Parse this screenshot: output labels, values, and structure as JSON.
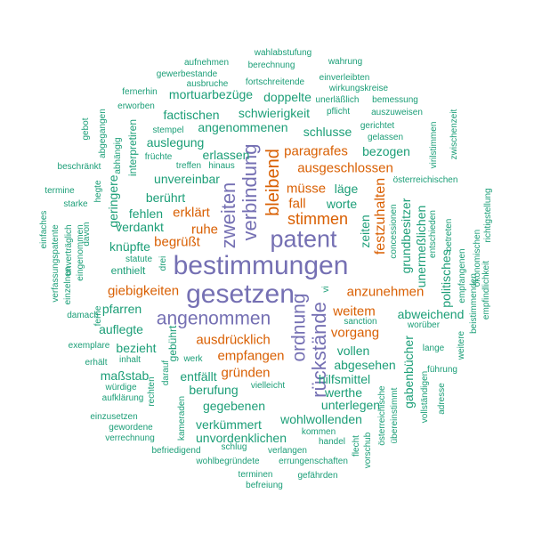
{
  "palette": {
    "purple": "#7570b3",
    "orange": "#d95f02",
    "green": "#1b9e77"
  },
  "words": {
    "bestimmungen": "bestimmungen",
    "gesetzen": "gesetzen",
    "patent": "patent",
    "angenommen": "angenommen",
    "zweiten": "zweiten",
    "verbindung": "verbindung",
    "ruckstande": "rückstände",
    "ordnung": "ordnung",
    "bleibend": "bleibend",
    "stimmen": "stimmen",
    "paragrafes": "paragrafes",
    "ausgeschlossen": "ausgeschlossen",
    "festzuhalten": "festzuhalten",
    "giebigkeiten": "giebigkeiten",
    "anzunehmen": "anzunehmen",
    "ausdrucklich": "ausdrücklich",
    "empfangen": "empfangen",
    "grunden": "gründen",
    "erklart": "erklärt",
    "ruhe": "ruhe",
    "begrusst": "begrüßt",
    "musse": "müsse",
    "fall": "fall",
    "vorgang": "vorgang",
    "weitem": "weitem",
    "wahlabstufung": "wahlabstufung",
    "aufnehmen": "aufnehmen",
    "berechnung": "berechnung",
    "wahrung": "wahrung",
    "gewerbestande": "gewerbestande",
    "einverleibten": "einverleibten",
    "ausbruche": "ausbruche",
    "fortschreitende": "fortschreitende",
    "wirkungskreise": "wirkungskreise",
    "fernerhin": "fernerhin",
    "mortuarbezuge": "mortuarbezüge",
    "doppelte": "doppelte",
    "unerlasslich": "unerläßlich",
    "bemessung": "bemessung",
    "erworben": "erworben",
    "pflicht": "pflicht",
    "auszuweisen": "auszuweisen",
    "gebot": "gebot",
    "abgegangen": "abgegangen",
    "factischen": "factischen",
    "schwierigkeit": "schwierigkeit",
    "zwischenzeit": "zwischenzeit",
    "stempel": "stempel",
    "angenommenen": "angenommenen",
    "schlusse": "schlusse",
    "gerichtet": "gerichtet",
    "interpretiren": "interpretiren",
    "auslegung": "auslegung",
    "gelassen": "gelassen",
    "virilstimmen": "virilstimmen",
    "abhangig": "abhängig",
    "fruchte": "früchte",
    "erlassen": "erlassen",
    "bezogen": "bezogen",
    "beschrankt": "beschränkt",
    "treffen": "treffen",
    "hinaus": "hinaus",
    "osterreichischen": "österreichischen",
    "hegte": "hegte",
    "geringere": "geringere",
    "unvereinbar": "unvereinbar",
    "lage": "läge",
    "termine": "termine",
    "einfaches": "einfaches",
    "starke": "starke",
    "beruhrt": "berührt",
    "worte": "worte",
    "richtigstellung": "richtigstellung",
    "verdankt": "verdankt",
    "fehlen": "fehlen",
    "zeiten": "zeiten",
    "concessionen": "concessionen",
    "vermoegens": "vermögens",
    "grundbesitzer": "grundbesitzer",
    "unermesslichen": "unermeßlichen",
    "entschieden": "entschieden",
    "betreten": "betreten",
    "davon": "davon",
    "unvertraglich": "unverträglich",
    "verfassungspatente": "verfassungspatente",
    "einzelnen": "einzelnen",
    "eingenommen": "eingenommen",
    "knupfte": "knüpfte",
    "enthielt": "enthielt",
    "statute": "statute",
    "drei": "drei",
    "okonomischen": "ökonomischen",
    "politisches": "politisches",
    "empfangenen": "empfangenen",
    "vi": "vi",
    "pfarren": "pfarren",
    "sanction": "sanction",
    "abweichend": "abweichend",
    "damach": "damach",
    "beistimmenden": "beistimmenden",
    "empfindlichkeit": "empfindlichkeit",
    "auflegte": "auflegte",
    "woruber": "worüber",
    "ferne": "ferne",
    "exemplare": "exemplare",
    "bezieht": "bezieht",
    "gebuhrt": "gebührt",
    "inhalt": "inhalt",
    "erhalt": "erhält",
    "werk": "werk",
    "vollen": "vollen",
    "lange": "lange",
    "weitere": "weitere",
    "abgesehen": "abgesehen",
    "massstab": "maßstab",
    "entfallt": "entfällt",
    "fuhrung": "führung",
    "wurdige": "würdige",
    "darauf": "darauf",
    "berufung": "berufung",
    "hilfsmittel": "hilfsmittel",
    "gabenbucher": "gabenbücher",
    "aufklarung": "aufklärung",
    "rechten": "rechten",
    "vielleicht": "vielleicht",
    "werthe": "werthe",
    "adresse": "adresse",
    "vollstandigen": "vollständigen",
    "gegebenen": "gegebenen",
    "unterlegen": "unterlegen",
    "osterreichische": "österreichische",
    "ubereinstimmt": "übereinstimmt",
    "einzusetzen": "einzusetzen",
    "verkummert": "verkümmert",
    "wohlwollenden": "wohlwollenden",
    "gewordene": "gewordene",
    "kameraden": "kameraden",
    "unvordenklichen": "unvordenklichen",
    "kommen": "kommen",
    "verrechnung": "verrechnung",
    "flecht": "flecht",
    "handel": "handel",
    "vorschub": "vorschub",
    "befriedigend": "befriedigend",
    "schlug": "schlug",
    "verlangen": "verlangen",
    "wohlbegrundete": "wohlbegründete",
    "errungenschaften": "errungenschaften",
    "terminen": "terminen",
    "befreiung": "befreiung",
    "gefahrden": "gefährden"
  }
}
